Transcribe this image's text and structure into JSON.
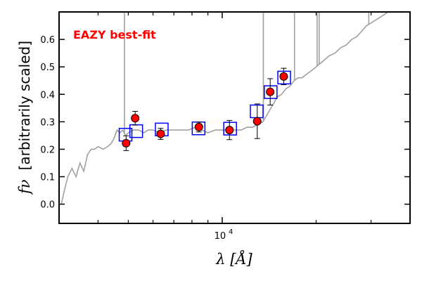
{
  "chart_data": {
    "type": "scatter",
    "title": "",
    "xlabel": "λ [Å]",
    "ylabel_symbol": "fν",
    "ylabel_text": "[arbitrarily scaled]",
    "xscale": "log",
    "xlim": [
      3000,
      40000
    ],
    "ylim": [
      -0.07,
      0.7
    ],
    "grid": false,
    "legend": "none",
    "annotation": "EAZY best-fit",
    "annotation_color": "#ff0000",
    "y_ticks": [
      0.0,
      0.1,
      0.2,
      0.3,
      0.4,
      0.5,
      0.6
    ],
    "y_tick_labels": [
      "0.0",
      "0.1",
      "0.2",
      "0.3",
      "0.4",
      "0.5",
      "0.6"
    ],
    "x_major_ticks": [
      10000
    ],
    "x_major_tick_labels": [
      "10"
    ],
    "x_major_tick_exponents": [
      "4"
    ],
    "x_minor_ticks": [
      4000,
      5000,
      6000,
      7000,
      8000,
      9000,
      20000,
      30000
    ],
    "series": [
      {
        "kind": "template",
        "color": "#a0a0a0",
        "x": [
          3050,
          3120,
          3200,
          3300,
          3400,
          3500,
          3600,
          3700,
          3800,
          3900,
          4000,
          4150,
          4300,
          4400,
          4500,
          4600,
          4700,
          4800,
          4900,
          5000,
          5200,
          5400,
          5600,
          5800,
          6000,
          6300,
          6600,
          7000,
          7400,
          7800,
          8200,
          8600,
          9000,
          9500,
          10000,
          10500,
          11000,
          11500,
          12000,
          12500,
          13000,
          13500,
          14000,
          14500,
          15000,
          15500,
          16000,
          16500,
          17000,
          17500,
          18000,
          18500,
          19000,
          19500,
          20000,
          21000,
          22000,
          23000,
          24000,
          25000,
          26000,
          27000,
          28000,
          29000,
          30000,
          31000,
          32000,
          33000,
          34000,
          35000
        ],
        "y": [
          0.0,
          0.05,
          0.1,
          0.13,
          0.1,
          0.15,
          0.12,
          0.18,
          0.2,
          0.2,
          0.21,
          0.2,
          0.21,
          0.22,
          0.24,
          0.27,
          0.26,
          0.27,
          0.25,
          0.26,
          0.27,
          0.27,
          0.26,
          0.27,
          0.27,
          0.26,
          0.27,
          0.27,
          0.27,
          0.27,
          0.28,
          0.27,
          0.26,
          0.27,
          0.27,
          0.27,
          0.27,
          0.27,
          0.28,
          0.28,
          0.29,
          0.3,
          0.33,
          0.36,
          0.39,
          0.4,
          0.42,
          0.43,
          0.45,
          0.46,
          0.46,
          0.47,
          0.48,
          0.49,
          0.5,
          0.52,
          0.54,
          0.55,
          0.57,
          0.58,
          0.6,
          0.61,
          0.63,
          0.65,
          0.66,
          0.67,
          0.68,
          0.69,
          0.7,
          0.7
        ],
        "emission_lines": [
          {
            "x": 4860,
            "y_top": 0.7
          },
          {
            "x": 13550,
            "y_top": 0.7
          },
          {
            "x": 17050,
            "y_top": 0.7
          },
          {
            "x": 20150,
            "y_top": 0.7
          },
          {
            "x": 20450,
            "y_top": 0.7
          },
          {
            "x": 29500,
            "y_top": 0.7
          }
        ]
      },
      {
        "kind": "model_photometry",
        "marker": "open-square",
        "color": "#0000ff",
        "x": [
          4900,
          5300,
          6400,
          8400,
          10600,
          12900,
          14300,
          15800
        ],
        "y": [
          0.253,
          0.266,
          0.272,
          0.276,
          0.275,
          0.338,
          0.408,
          0.461
        ]
      },
      {
        "kind": "observed_photometry",
        "marker": "filled-circle",
        "color": "#ff0000",
        "edgecolor": "#000000",
        "x": [
          4920,
          5260,
          6350,
          8420,
          10550,
          12950,
          14250,
          15750
        ],
        "y": [
          0.222,
          0.313,
          0.256,
          0.281,
          0.27,
          0.302,
          0.409,
          0.465
        ],
        "yerr": [
          0.027,
          0.025,
          0.02,
          0.018,
          0.035,
          0.063,
          0.048,
          0.03
        ]
      }
    ]
  }
}
